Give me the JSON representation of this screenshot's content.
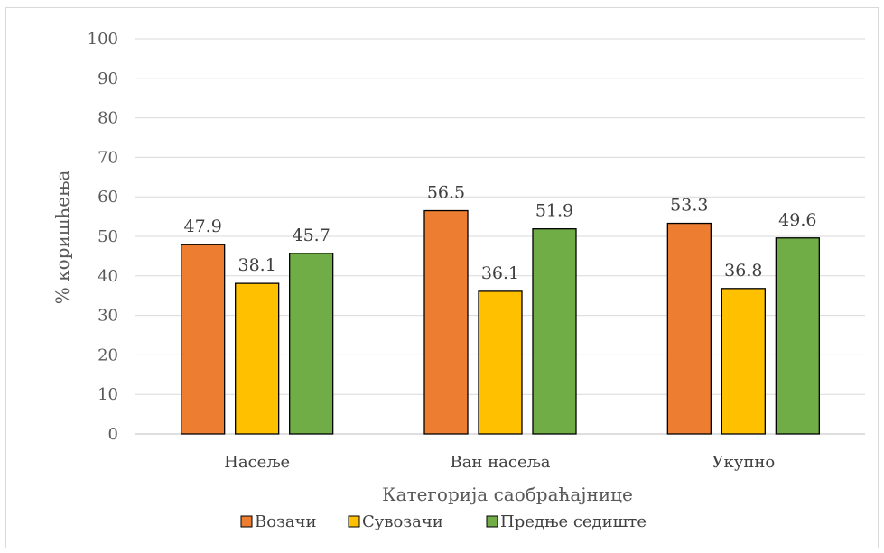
{
  "chart_data": {
    "type": "bar",
    "categories": [
      "Насеље",
      "Ван насеља",
      "Укупно"
    ],
    "series": [
      {
        "name": "Возачи",
        "values": [
          47.9,
          56.5,
          53.3
        ],
        "color": "#ED7D31"
      },
      {
        "name": "Сувозачи",
        "values": [
          38.1,
          36.1,
          36.8
        ],
        "color": "#FFC000"
      },
      {
        "name": "Предње седиште",
        "values": [
          45.7,
          51.9,
          49.6
        ],
        "color": "#70AD47"
      }
    ],
    "data_labels": [
      [
        "47.9",
        "38.1",
        "45.7"
      ],
      [
        "56.5",
        "36.1",
        "51.9"
      ],
      [
        "53.3",
        "36.8",
        "49.6"
      ]
    ],
    "yticks": [
      "0",
      "10",
      "20",
      "30",
      "40",
      "50",
      "60",
      "70",
      "80",
      "90",
      "100"
    ],
    "ylim": [
      0,
      100
    ],
    "xlabel": "Категорија саобраћајнице",
    "ylabel": "% коришћења",
    "legend_position": "bottom",
    "grid": true,
    "gridline_color": "#d9d9d9",
    "bar_outline_color": "#000000"
  }
}
